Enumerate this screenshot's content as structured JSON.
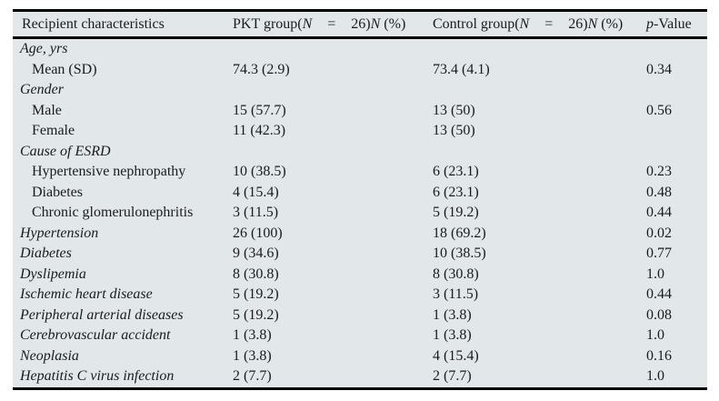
{
  "table": {
    "columns": {
      "characteristics": "Recipient characteristics",
      "pkt": {
        "pre": "PKT group(",
        "n": "N",
        "eq": "=",
        "count": "26)",
        "n2": "N",
        "pct": "(%)"
      },
      "control": {
        "pre": "Control group(",
        "n": "N",
        "eq": "=",
        "count": "26)",
        "n2": "N",
        "pct": "(%)"
      },
      "pvalue": {
        "p": "p",
        "rest": "-Value"
      }
    },
    "rows": [
      {
        "label": "Age, yrs"
      },
      {
        "label": "Mean (SD)",
        "pkt": "74.3 (2.9)",
        "control": "73.4 (4.1)",
        "p": "0.34"
      },
      {
        "label": "Gender"
      },
      {
        "label": "Male",
        "pkt": "15 (57.7)",
        "control": "13 (50)",
        "p": "0.56"
      },
      {
        "label": "Female",
        "pkt": "11 (42.3)",
        "control": "13 (50)"
      },
      {
        "label": "Cause of ESRD"
      },
      {
        "label": "Hypertensive nephropathy",
        "pkt": "10 (38.5)",
        "control": "6 (23.1)",
        "p": "0.23"
      },
      {
        "label": "Diabetes",
        "pkt": "4 (15.4)",
        "control": "6 (23.1)",
        "p": "0.48"
      },
      {
        "label": "Chronic glomerulonephritis",
        "pkt": "3 (11.5)",
        "control": "5 (19.2)",
        "p": "0.44"
      },
      {
        "label": "Hypertension",
        "pkt": "26 (100)",
        "control": "18 (69.2)",
        "p": "0.02"
      },
      {
        "label": "Diabetes",
        "pkt": "9 (34.6)",
        "control": "10 (38.5)",
        "p": "0.77"
      },
      {
        "label": "Dyslipemia",
        "pkt": "8 (30.8)",
        "control": "8 (30.8)",
        "p": "1.0"
      },
      {
        "label": "Ischemic heart disease",
        "pkt": "5 (19.2)",
        "control": "3 (11.5)",
        "p": "0.44"
      },
      {
        "label": "Peripheral arterial diseases",
        "pkt": "5 (19.2)",
        "control": "1 (3.8)",
        "p": "0.08"
      },
      {
        "label": "Cerebrovascular accident",
        "pkt": "1 (3.8)",
        "control": "1 (3.8)",
        "p": "1.0"
      },
      {
        "label": "Neoplasia",
        "pkt": "1 (3.8)",
        "control": "4 (15.4)",
        "p": "0.16"
      },
      {
        "label": "Hepatitis C virus infection",
        "pkt": "2 (7.7)",
        "control": "2 (7.7)",
        "p": "1.0"
      }
    ]
  },
  "colors": {
    "table_background": "#e2e7e9",
    "rule": "#000000",
    "text": "#1b1b1b"
  }
}
